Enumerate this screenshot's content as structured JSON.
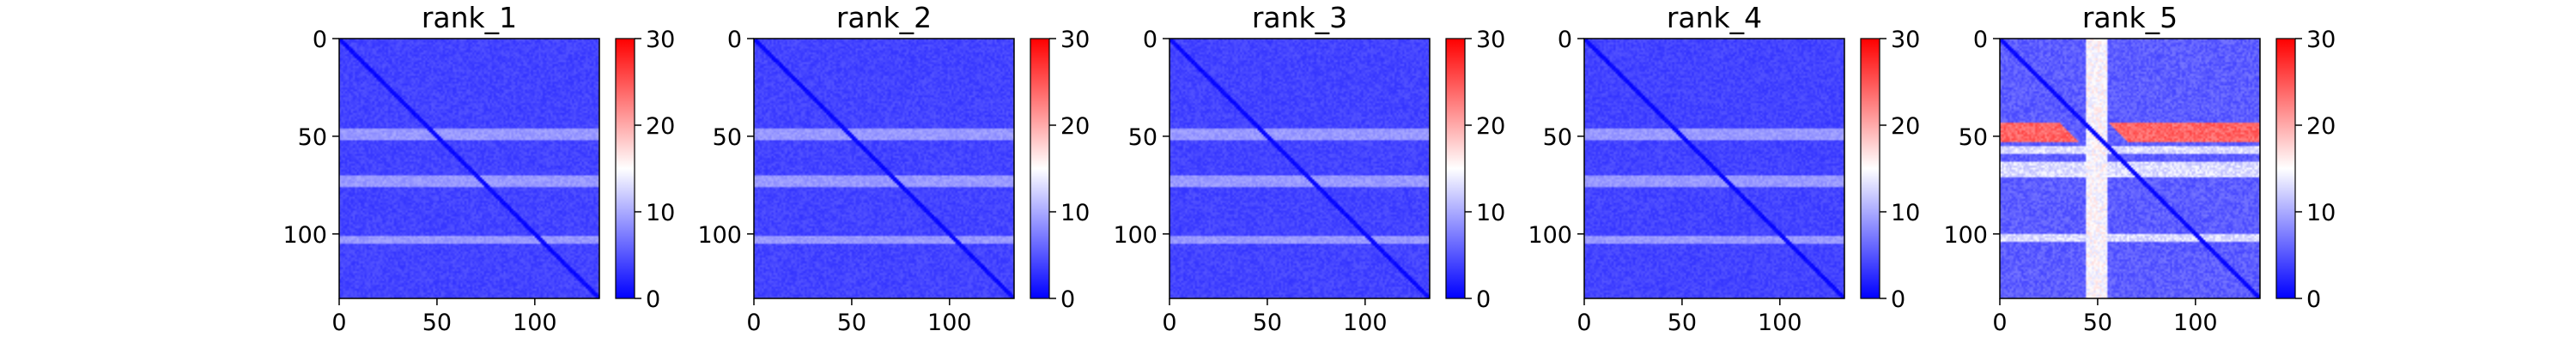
{
  "chart_data": [
    {
      "type": "heatmap",
      "title": "rank_1",
      "x_ticks": [
        "0",
        "50",
        "100"
      ],
      "y_ticks": [
        "0",
        "50",
        "100"
      ],
      "n": 133,
      "xlim": [
        0,
        133
      ],
      "ylim": [
        133,
        0
      ],
      "colorbar": {
        "ticks": [
          "0",
          "10",
          "20",
          "30"
        ],
        "min": 0,
        "max": 30,
        "colormap": "bwr"
      },
      "cell_value_ranges": {
        "background": [
          3,
          5
        ],
        "diagonal": [
          0,
          1
        ],
        "bright_rows": [
          46,
          51,
          70,
          75,
          101,
          104
        ],
        "bright_row_value": [
          8,
          10
        ],
        "hot_band_rows": [],
        "hot_band_value": null,
        "bright_columns": [],
        "bright_column_value": null
      }
    },
    {
      "type": "heatmap",
      "title": "rank_2",
      "x_ticks": [
        "0",
        "50",
        "100"
      ],
      "y_ticks": [
        "0",
        "50",
        "100"
      ],
      "n": 133,
      "xlim": [
        0,
        133
      ],
      "ylim": [
        133,
        0
      ],
      "colorbar": {
        "ticks": [
          "0",
          "10",
          "20",
          "30"
        ],
        "min": 0,
        "max": 30,
        "colormap": "bwr"
      },
      "cell_value_ranges": {
        "background": [
          3,
          5
        ],
        "diagonal": [
          0,
          1
        ],
        "bright_rows": [
          46,
          51,
          70,
          75,
          101,
          104
        ],
        "bright_row_value": [
          8,
          10
        ],
        "hot_band_rows": [],
        "hot_band_value": null,
        "bright_columns": [],
        "bright_column_value": null
      }
    },
    {
      "type": "heatmap",
      "title": "rank_3",
      "x_ticks": [
        "0",
        "50",
        "100"
      ],
      "y_ticks": [
        "0",
        "50",
        "100"
      ],
      "n": 133,
      "xlim": [
        0,
        133
      ],
      "ylim": [
        133,
        0
      ],
      "colorbar": {
        "ticks": [
          "0",
          "10",
          "20",
          "30"
        ],
        "min": 0,
        "max": 30,
        "colormap": "bwr"
      },
      "cell_value_ranges": {
        "background": [
          3,
          5
        ],
        "diagonal": [
          0,
          1
        ],
        "bright_rows": [
          46,
          51,
          70,
          75,
          101,
          104
        ],
        "bright_row_value": [
          8,
          10
        ],
        "hot_band_rows": [],
        "hot_band_value": null,
        "bright_columns": [],
        "bright_column_value": null
      }
    },
    {
      "type": "heatmap",
      "title": "rank_4",
      "x_ticks": [
        "0",
        "50",
        "100"
      ],
      "y_ticks": [
        "0",
        "50",
        "100"
      ],
      "n": 133,
      "xlim": [
        0,
        133
      ],
      "ylim": [
        133,
        0
      ],
      "colorbar": {
        "ticks": [
          "0",
          "10",
          "20",
          "30"
        ],
        "min": 0,
        "max": 30,
        "colormap": "bwr"
      },
      "cell_value_ranges": {
        "background": [
          3,
          5
        ],
        "diagonal": [
          0,
          1
        ],
        "bright_rows": [
          46,
          51,
          70,
          75,
          101,
          104
        ],
        "bright_row_value": [
          8,
          10
        ],
        "hot_band_rows": [],
        "hot_band_value": null,
        "bright_columns": [],
        "bright_column_value": null
      }
    },
    {
      "type": "heatmap",
      "title": "rank_5",
      "x_ticks": [
        "0",
        "50",
        "100"
      ],
      "y_ticks": [
        "0",
        "50",
        "100"
      ],
      "n": 133,
      "xlim": [
        0,
        133
      ],
      "ylim": [
        133,
        0
      ],
      "colorbar": {
        "ticks": [
          "0",
          "10",
          "20",
          "30"
        ],
        "min": 0,
        "max": 30,
        "colormap": "bwr"
      },
      "cell_value_ranges": {
        "background": [
          4,
          7
        ],
        "diagonal": [
          0,
          1
        ],
        "bright_rows": [
          55,
          58,
          63,
          70,
          100,
          103
        ],
        "bright_row_value": [
          11,
          15
        ],
        "hot_band_rows": [
          43,
          52
        ],
        "hot_band_value": [
          22,
          26
        ],
        "bright_columns": [
          44,
          54
        ],
        "bright_column_value": [
          13,
          17
        ]
      }
    }
  ]
}
